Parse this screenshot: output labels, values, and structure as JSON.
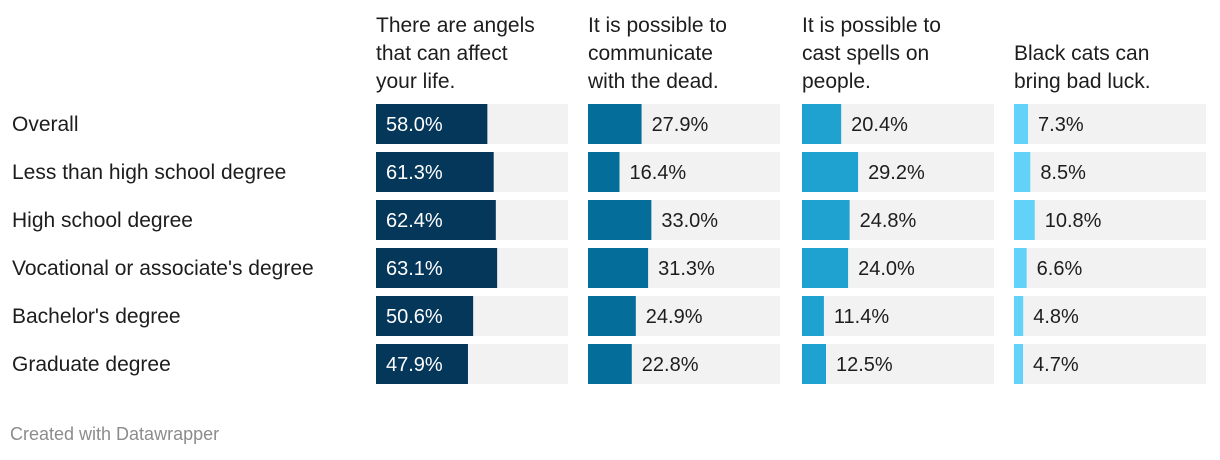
{
  "chart_data": {
    "type": "bar",
    "categories": [
      "Overall",
      "Less than high school degree",
      "High school degree",
      "Vocational or associate's degree",
      "Bachelor's degree",
      "Graduate degree"
    ],
    "series": [
      {
        "name": "There are angels that can affect your life.",
        "title_lines": [
          "There are angels",
          "that can affect",
          "your life."
        ],
        "color": "#05375a",
        "values": [
          58.0,
          61.3,
          62.4,
          63.1,
          50.6,
          47.9
        ]
      },
      {
        "name": "It is possible to communicate with the dead.",
        "title_lines": [
          "It is possible to",
          "communicate",
          "with the dead."
        ],
        "color": "#046d9a",
        "values": [
          27.9,
          16.4,
          33.0,
          31.3,
          24.9,
          22.8
        ]
      },
      {
        "name": "It is possible to cast spells on people.",
        "title_lines": [
          "It is possible to",
          "cast spells on",
          "people."
        ],
        "color": "#1fa2cf",
        "values": [
          20.4,
          29.2,
          24.8,
          24.0,
          11.4,
          12.5
        ]
      },
      {
        "name": "Black cats can bring bad luck.",
        "title_lines": [
          "Black cats can",
          "bring bad luck."
        ],
        "color": "#62d2f8",
        "values": [
          7.3,
          8.5,
          10.8,
          6.6,
          4.8,
          4.7
        ]
      }
    ],
    "value_suffix": "%",
    "xlim": [
      0,
      100
    ],
    "background_bar_color": "#f2f2f2",
    "grid": false,
    "legend": "none"
  },
  "footer": {
    "credit": "Created with Datawrapper"
  }
}
